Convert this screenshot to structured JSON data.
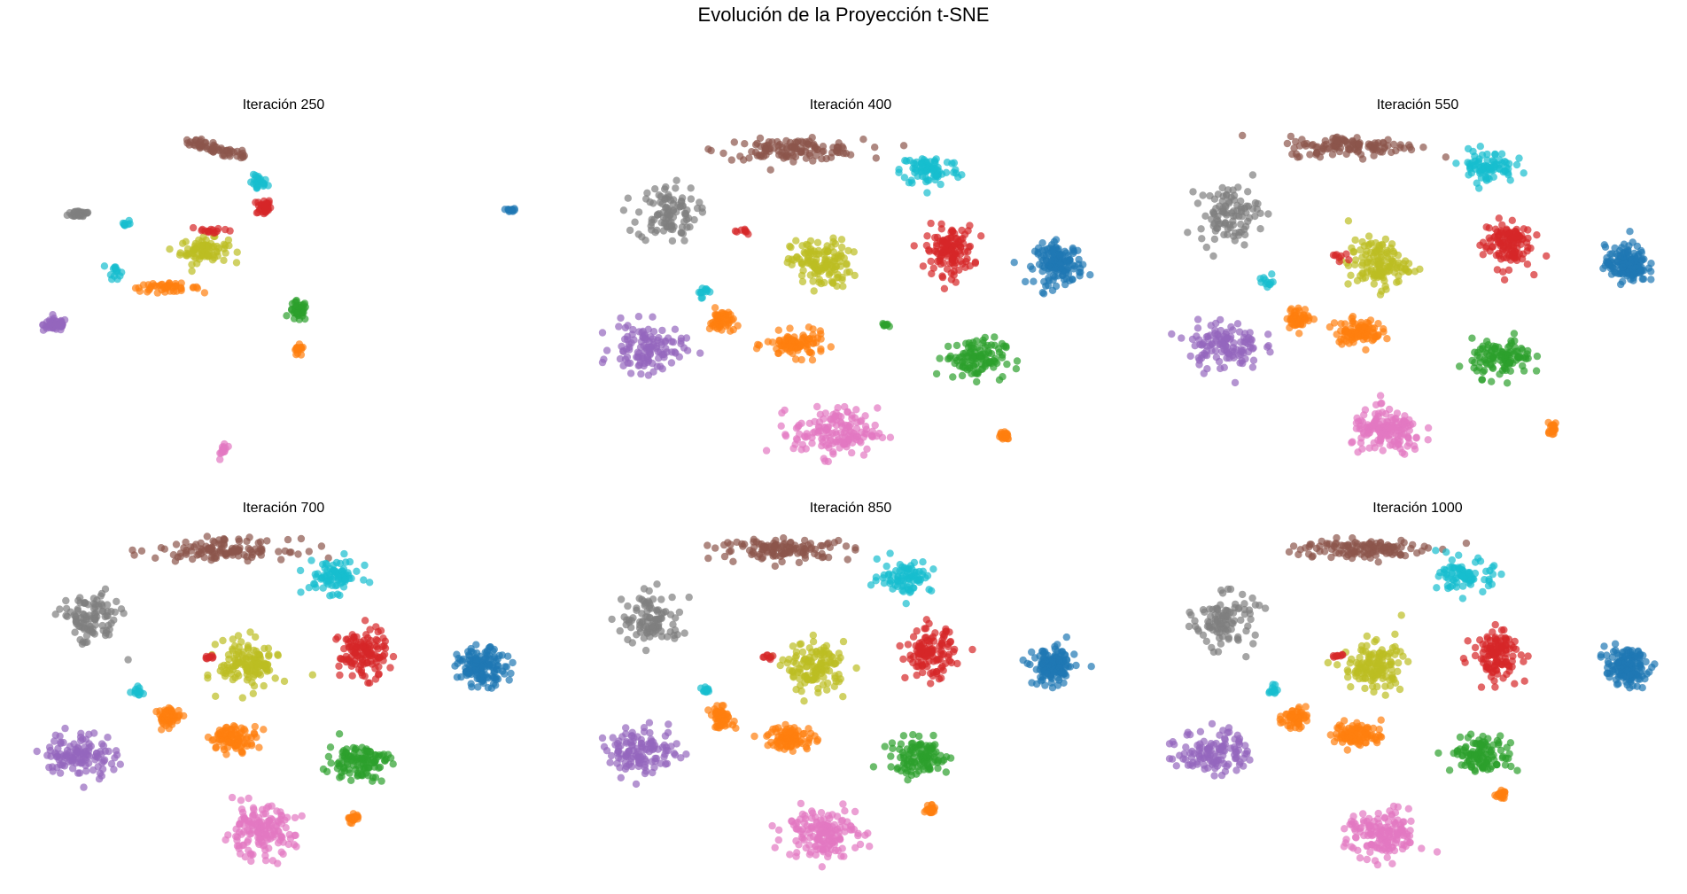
{
  "figure": {
    "suptitle": "Evolución de la Proyección t-SNE"
  },
  "palette": {
    "blue": "#1f77b4",
    "orange": "#ff7f0e",
    "green": "#2ca02c",
    "red": "#d62728",
    "purple": "#9467bd",
    "brown": "#8c564b",
    "pink": "#e377c2",
    "gray": "#7f7f7f",
    "olive": "#bcbd22",
    "cyan": "#17becf"
  },
  "chart_data": [
    {
      "type": "scatter",
      "title": "Iteración 250",
      "axes": "off",
      "grid": false,
      "alpha": 0.7,
      "xlim": [
        0,
        100
      ],
      "ylim": [
        0,
        100
      ],
      "clusters": [
        {
          "color": "brown",
          "shape": "arc",
          "cx": 30,
          "cy": 97,
          "sx": 8,
          "sy": 1.5,
          "n": 60,
          "arc_to": [
            42,
            92
          ]
        },
        {
          "color": "cyan",
          "cx": 45,
          "cy": 84,
          "sx": 1.5,
          "sy": 2,
          "n": 25
        },
        {
          "color": "red",
          "cx": 46,
          "cy": 77,
          "sx": 1.2,
          "sy": 2,
          "n": 35
        },
        {
          "color": "gray",
          "cx": 9,
          "cy": 75,
          "sx": 2,
          "sy": 1,
          "n": 30
        },
        {
          "color": "cyan",
          "cx": 18,
          "cy": 72,
          "sx": 1,
          "sy": 1,
          "n": 8
        },
        {
          "color": "cyan",
          "cx": 16,
          "cy": 58,
          "sx": 1,
          "sy": 2,
          "n": 15
        },
        {
          "color": "olive",
          "cx": 34,
          "cy": 64,
          "sx": 4,
          "sy": 3,
          "n": 80
        },
        {
          "color": "red",
          "cx": 36,
          "cy": 70,
          "sx": 4,
          "sy": 1,
          "n": 15
        },
        {
          "color": "orange",
          "cx": 26,
          "cy": 53,
          "sx": 6,
          "sy": 1,
          "n": 45
        },
        {
          "color": "purple",
          "cx": 4,
          "cy": 42,
          "sx": 2,
          "sy": 1.5,
          "n": 60
        },
        {
          "color": "green",
          "cx": 53,
          "cy": 46,
          "sx": 1.5,
          "sy": 2.5,
          "n": 40
        },
        {
          "color": "orange",
          "cx": 53,
          "cy": 34,
          "sx": 1,
          "sy": 1.5,
          "n": 15
        },
        {
          "color": "pink",
          "cx": 38,
          "cy": 5,
          "sx": 0.6,
          "sy": 2,
          "n": 15
        },
        {
          "color": "blue",
          "cx": 96,
          "cy": 76,
          "sx": 0.8,
          "sy": 0.4,
          "n": 12
        }
      ]
    },
    {
      "type": "scatter",
      "title": "Iteración 400",
      "axes": "off",
      "grid": false,
      "alpha": 0.7,
      "xlim": [
        0,
        100
      ],
      "ylim": [
        0,
        100
      ],
      "clusters": [
        {
          "color": "brown",
          "cx": 38,
          "cy": 94,
          "sx": 12,
          "sy": 2.5,
          "n": 120
        },
        {
          "color": "cyan",
          "cx": 66,
          "cy": 88,
          "sx": 5,
          "sy": 4,
          "n": 80
        },
        {
          "color": "gray",
          "cx": 13,
          "cy": 75,
          "sx": 5,
          "sy": 7,
          "n": 100
        },
        {
          "color": "olive",
          "cx": 44,
          "cy": 60,
          "sx": 5,
          "sy": 6,
          "n": 130
        },
        {
          "color": "red",
          "cx": 70,
          "cy": 64,
          "sx": 4,
          "sy": 6,
          "n": 120
        },
        {
          "color": "blue",
          "cx": 92,
          "cy": 60,
          "sx": 4,
          "sy": 5,
          "n": 140
        },
        {
          "color": "cyan",
          "cx": 20,
          "cy": 52,
          "sx": 1,
          "sy": 1.5,
          "n": 12
        },
        {
          "color": "orange",
          "cx": 24,
          "cy": 43,
          "sx": 2,
          "sy": 3,
          "n": 50
        },
        {
          "color": "orange",
          "cx": 39,
          "cy": 36,
          "sx": 5,
          "sy": 3,
          "n": 90
        },
        {
          "color": "purple",
          "cx": 9,
          "cy": 35,
          "sx": 6,
          "sy": 6,
          "n": 120
        },
        {
          "color": "green",
          "cx": 75,
          "cy": 32,
          "sx": 5,
          "sy": 5,
          "n": 110
        },
        {
          "color": "pink",
          "cx": 47,
          "cy": 10,
          "sx": 7,
          "sy": 6,
          "n": 150
        },
        {
          "color": "orange",
          "cx": 81,
          "cy": 9,
          "sx": 1,
          "sy": 1.5,
          "n": 20
        },
        {
          "color": "red",
          "cx": 28,
          "cy": 70,
          "sx": 2,
          "sy": 1,
          "n": 8
        },
        {
          "color": "green",
          "cx": 57,
          "cy": 42,
          "sx": 1,
          "sy": 0.5,
          "n": 8
        }
      ]
    },
    {
      "type": "scatter",
      "title": "Iteración 550",
      "axes": "off",
      "grid": false,
      "alpha": 0.7,
      "xlim": [
        0,
        100
      ],
      "ylim": [
        0,
        100
      ],
      "clusters": [
        {
          "color": "brown",
          "cx": 37,
          "cy": 95,
          "sx": 11,
          "sy": 2.5,
          "n": 120
        },
        {
          "color": "cyan",
          "cx": 64,
          "cy": 89,
          "sx": 4.5,
          "sy": 4,
          "n": 80
        },
        {
          "color": "gray",
          "cx": 12,
          "cy": 75,
          "sx": 5,
          "sy": 7,
          "n": 100
        },
        {
          "color": "olive",
          "cx": 42,
          "cy": 60,
          "sx": 5,
          "sy": 6,
          "n": 130
        },
        {
          "color": "red",
          "cx": 68,
          "cy": 66,
          "sx": 4,
          "sy": 6,
          "n": 120
        },
        {
          "color": "blue",
          "cx": 92,
          "cy": 60,
          "sx": 3.5,
          "sy": 4.5,
          "n": 140
        },
        {
          "color": "cyan",
          "cx": 20,
          "cy": 55,
          "sx": 1.5,
          "sy": 1.5,
          "n": 12
        },
        {
          "color": "orange",
          "cx": 26,
          "cy": 44,
          "sx": 2,
          "sy": 2.5,
          "n": 50
        },
        {
          "color": "orange",
          "cx": 38,
          "cy": 40,
          "sx": 4,
          "sy": 3,
          "n": 90
        },
        {
          "color": "purple",
          "cx": 11,
          "cy": 36,
          "sx": 6,
          "sy": 6,
          "n": 120
        },
        {
          "color": "green",
          "cx": 67,
          "cy": 32,
          "sx": 5,
          "sy": 4.5,
          "n": 110
        },
        {
          "color": "pink",
          "cx": 44,
          "cy": 10,
          "sx": 6,
          "sy": 5.5,
          "n": 150
        },
        {
          "color": "orange",
          "cx": 77,
          "cy": 11,
          "sx": 1,
          "sy": 1.5,
          "n": 20
        },
        {
          "color": "red",
          "cx": 34,
          "cy": 62,
          "sx": 2,
          "sy": 1,
          "n": 8
        }
      ]
    },
    {
      "type": "scatter",
      "title": "Iteración 700",
      "axes": "off",
      "grid": false,
      "alpha": 0.7,
      "xlim": [
        0,
        100
      ],
      "ylim": [
        0,
        100
      ],
      "clusters": [
        {
          "color": "brown",
          "cx": 38,
          "cy": 95,
          "sx": 11,
          "sy": 2.5,
          "n": 120
        },
        {
          "color": "cyan",
          "cx": 60,
          "cy": 87,
          "sx": 4.5,
          "sy": 4,
          "n": 80
        },
        {
          "color": "gray",
          "cx": 11,
          "cy": 74,
          "sx": 5,
          "sy": 6.5,
          "n": 100
        },
        {
          "color": "olive",
          "cx": 43,
          "cy": 61,
          "sx": 5,
          "sy": 6,
          "n": 130
        },
        {
          "color": "red",
          "cx": 66,
          "cy": 64,
          "sx": 4,
          "sy": 6,
          "n": 120
        },
        {
          "color": "blue",
          "cx": 90,
          "cy": 60,
          "sx": 4,
          "sy": 4.5,
          "n": 140
        },
        {
          "color": "cyan",
          "cx": 21,
          "cy": 53,
          "sx": 1.2,
          "sy": 1.2,
          "n": 12
        },
        {
          "color": "orange",
          "cx": 27,
          "cy": 45,
          "sx": 2,
          "sy": 2.5,
          "n": 50
        },
        {
          "color": "orange",
          "cx": 40,
          "cy": 39,
          "sx": 4,
          "sy": 3,
          "n": 90
        },
        {
          "color": "purple",
          "cx": 9,
          "cy": 34,
          "sx": 6,
          "sy": 5.5,
          "n": 120
        },
        {
          "color": "green",
          "cx": 65,
          "cy": 32,
          "sx": 5,
          "sy": 4.5,
          "n": 110
        },
        {
          "color": "pink",
          "cx": 45,
          "cy": 11,
          "sx": 6,
          "sy": 6,
          "n": 150
        },
        {
          "color": "orange",
          "cx": 64,
          "cy": 15,
          "sx": 1,
          "sy": 1.2,
          "n": 20
        },
        {
          "color": "red",
          "cx": 35,
          "cy": 63,
          "sx": 1.5,
          "sy": 1,
          "n": 8
        }
      ]
    },
    {
      "type": "scatter",
      "title": "Iteración 850",
      "axes": "off",
      "grid": false,
      "alpha": 0.7,
      "xlim": [
        0,
        100
      ],
      "ylim": [
        0,
        100
      ],
      "clusters": [
        {
          "color": "brown",
          "cx": 37,
          "cy": 95,
          "sx": 11,
          "sy": 2.5,
          "n": 120
        },
        {
          "color": "cyan",
          "cx": 61,
          "cy": 87,
          "sx": 4.5,
          "sy": 4,
          "n": 80
        },
        {
          "color": "gray",
          "cx": 10,
          "cy": 74,
          "sx": 5,
          "sy": 6.5,
          "n": 100
        },
        {
          "color": "olive",
          "cx": 43,
          "cy": 60,
          "sx": 5,
          "sy": 6,
          "n": 130
        },
        {
          "color": "red",
          "cx": 66,
          "cy": 64,
          "sx": 4,
          "sy": 6,
          "n": 120
        },
        {
          "color": "blue",
          "cx": 91,
          "cy": 60,
          "sx": 3.5,
          "sy": 4.5,
          "n": 140
        },
        {
          "color": "cyan",
          "cx": 20,
          "cy": 53,
          "sx": 1.2,
          "sy": 1.2,
          "n": 12
        },
        {
          "color": "orange",
          "cx": 24,
          "cy": 45,
          "sx": 2,
          "sy": 2.5,
          "n": 50
        },
        {
          "color": "orange",
          "cx": 38,
          "cy": 39,
          "sx": 4,
          "sy": 3,
          "n": 90
        },
        {
          "color": "purple",
          "cx": 8,
          "cy": 35,
          "sx": 6,
          "sy": 5.5,
          "n": 120
        },
        {
          "color": "green",
          "cx": 64,
          "cy": 33,
          "sx": 5,
          "sy": 4.5,
          "n": 110
        },
        {
          "color": "pink",
          "cx": 44,
          "cy": 11,
          "sx": 6,
          "sy": 6,
          "n": 150
        },
        {
          "color": "orange",
          "cx": 66,
          "cy": 18,
          "sx": 1,
          "sy": 1.2,
          "n": 20
        },
        {
          "color": "red",
          "cx": 33,
          "cy": 63,
          "sx": 1.5,
          "sy": 1,
          "n": 8
        }
      ]
    },
    {
      "type": "scatter",
      "title": "Iteración 1000",
      "axes": "off",
      "grid": false,
      "alpha": 0.7,
      "xlim": [
        0,
        100
      ],
      "ylim": [
        0,
        100
      ],
      "clusters": [
        {
          "color": "brown",
          "cx": 38,
          "cy": 95,
          "sx": 11,
          "sy": 2.5,
          "n": 120
        },
        {
          "color": "cyan",
          "cx": 60,
          "cy": 87,
          "sx": 4.5,
          "sy": 4,
          "n": 80
        },
        {
          "color": "gray",
          "cx": 11,
          "cy": 74,
          "sx": 5,
          "sy": 6.5,
          "n": 100
        },
        {
          "color": "olive",
          "cx": 41,
          "cy": 60,
          "sx": 5,
          "sy": 6,
          "n": 130
        },
        {
          "color": "red",
          "cx": 66,
          "cy": 64,
          "sx": 4,
          "sy": 6,
          "n": 120
        },
        {
          "color": "blue",
          "cx": 92,
          "cy": 60,
          "sx": 3.5,
          "sy": 4.5,
          "n": 140
        },
        {
          "color": "cyan",
          "cx": 21,
          "cy": 53,
          "sx": 1.2,
          "sy": 1.2,
          "n": 12
        },
        {
          "color": "orange",
          "cx": 25,
          "cy": 45,
          "sx": 2,
          "sy": 2.5,
          "n": 50
        },
        {
          "color": "orange",
          "cx": 38,
          "cy": 40,
          "sx": 4,
          "sy": 3,
          "n": 90
        },
        {
          "color": "purple",
          "cx": 9,
          "cy": 35,
          "sx": 6,
          "sy": 5.5,
          "n": 120
        },
        {
          "color": "green",
          "cx": 63,
          "cy": 34,
          "sx": 5,
          "sy": 4.5,
          "n": 110
        },
        {
          "color": "pink",
          "cx": 43,
          "cy": 10,
          "sx": 6,
          "sy": 6,
          "n": 150
        },
        {
          "color": "orange",
          "cx": 67,
          "cy": 22,
          "sx": 1,
          "sy": 1.2,
          "n": 20
        },
        {
          "color": "red",
          "cx": 33,
          "cy": 63,
          "sx": 1.5,
          "sy": 1,
          "n": 8
        }
      ]
    }
  ]
}
